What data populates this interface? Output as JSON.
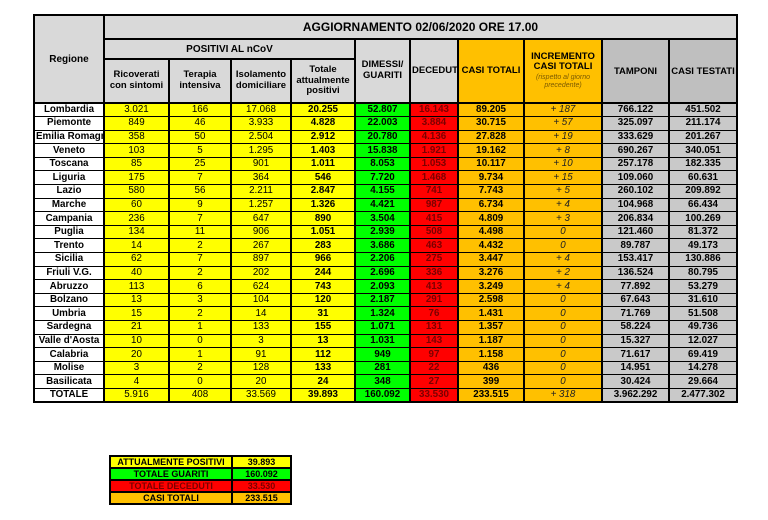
{
  "title": "AGGIORNAMENTO 02/06/2020 ORE 17.00",
  "colors": {
    "yellow": "#FFFF00",
    "green": "#00FF00",
    "red": "#FF0000",
    "orange": "#FFC000",
    "header_light_gray": "#D9D9D9",
    "header_dark_gray": "#BFBFBF",
    "data_gray": "#C9C9C9",
    "deceduti_text": "#7A0000"
  },
  "table": {
    "headers": {
      "regione": "Regione",
      "positivi_group": "POSITIVI AL nCoV",
      "ricoverati": "Ricoverati con sintomi",
      "terapia": "Terapia intensiva",
      "isolamento": "Isolamento domiciliare",
      "totale_positivi": "Totale attualmente positivi",
      "dimessi": "DIMESSI/ GUARITI",
      "deceduti": "DECEDUTI",
      "casi_totali": "CASI TOTALI",
      "incremento_line1": "INCREMENTO CASI TOTALI",
      "incremento_line2": "(rispetto al giorno precedente)",
      "tamponi": "TAMPONI",
      "casi_testati": "CASI TESTATI"
    },
    "cell_names": [
      "ricoverati-con-sintomi",
      "terapia-intensiva",
      "isolamento-domiciliare",
      "totale-attualmente-positivi",
      "dimessi-guariti",
      "deceduti",
      "casi-totali",
      "incremento-casi-totali",
      "tamponi",
      "casi-testati"
    ],
    "rows": [
      {
        "region": "Lombardia",
        "cells": [
          "3.021",
          "166",
          "17.068",
          "20.255",
          "52.807",
          "16.143",
          "89.205",
          "+ 187",
          "766.122",
          "451.502"
        ]
      },
      {
        "region": "Piemonte",
        "cells": [
          "849",
          "46",
          "3.933",
          "4.828",
          "22.003",
          "3.884",
          "30.715",
          "+ 57",
          "325.097",
          "211.174"
        ]
      },
      {
        "region": "Emilia Romagna",
        "cells": [
          "358",
          "50",
          "2.504",
          "2.912",
          "20.780",
          "4.136",
          "27.828",
          "+ 19",
          "333.629",
          "201.267"
        ]
      },
      {
        "region": "Veneto",
        "cells": [
          "103",
          "5",
          "1.295",
          "1.403",
          "15.838",
          "1.921",
          "19.162",
          "+ 8",
          "690.267",
          "340.051"
        ]
      },
      {
        "region": "Toscana",
        "cells": [
          "85",
          "25",
          "901",
          "1.011",
          "8.053",
          "1.053",
          "10.117",
          "+ 10",
          "257.178",
          "182.335"
        ]
      },
      {
        "region": "Liguria",
        "cells": [
          "175",
          "7",
          "364",
          "546",
          "7.720",
          "1.468",
          "9.734",
          "+ 15",
          "109.060",
          "60.631"
        ]
      },
      {
        "region": "Lazio",
        "cells": [
          "580",
          "56",
          "2.211",
          "2.847",
          "4.155",
          "741",
          "7.743",
          "+ 5",
          "260.102",
          "209.892"
        ]
      },
      {
        "region": "Marche",
        "cells": [
          "60",
          "9",
          "1.257",
          "1.326",
          "4.421",
          "987",
          "6.734",
          "+ 4",
          "104.968",
          "66.434"
        ]
      },
      {
        "region": "Campania",
        "cells": [
          "236",
          "7",
          "647",
          "890",
          "3.504",
          "415",
          "4.809",
          "+ 3",
          "206.834",
          "100.269"
        ]
      },
      {
        "region": "Puglia",
        "cells": [
          "134",
          "11",
          "906",
          "1.051",
          "2.939",
          "508",
          "4.498",
          "0",
          "121.460",
          "81.372"
        ]
      },
      {
        "region": "Trento",
        "cells": [
          "14",
          "2",
          "267",
          "283",
          "3.686",
          "463",
          "4.432",
          "0",
          "89.787",
          "49.173"
        ]
      },
      {
        "region": "Sicilia",
        "cells": [
          "62",
          "7",
          "897",
          "966",
          "2.206",
          "275",
          "3.447",
          "+ 4",
          "153.417",
          "130.886"
        ]
      },
      {
        "region": "Friuli V.G.",
        "cells": [
          "40",
          "2",
          "202",
          "244",
          "2.696",
          "336",
          "3.276",
          "+ 2",
          "136.524",
          "80.795"
        ]
      },
      {
        "region": "Abruzzo",
        "cells": [
          "113",
          "6",
          "624",
          "743",
          "2.093",
          "413",
          "3.249",
          "+ 4",
          "77.892",
          "53.279"
        ]
      },
      {
        "region": "Bolzano",
        "cells": [
          "13",
          "3",
          "104",
          "120",
          "2.187",
          "291",
          "2.598",
          "0",
          "67.643",
          "31.610"
        ]
      },
      {
        "region": "Umbria",
        "cells": [
          "15",
          "2",
          "14",
          "31",
          "1.324",
          "76",
          "1.431",
          "0",
          "71.769",
          "51.508"
        ]
      },
      {
        "region": "Sardegna",
        "cells": [
          "21",
          "1",
          "133",
          "155",
          "1.071",
          "131",
          "1.357",
          "0",
          "58.224",
          "49.736"
        ]
      },
      {
        "region": "Valle d'Aosta",
        "cells": [
          "10",
          "0",
          "3",
          "13",
          "1.031",
          "143",
          "1.187",
          "0",
          "15.327",
          "12.027"
        ]
      },
      {
        "region": "Calabria",
        "cells": [
          "20",
          "1",
          "91",
          "112",
          "949",
          "97",
          "1.158",
          "0",
          "71.617",
          "69.419"
        ]
      },
      {
        "region": "Molise",
        "cells": [
          "3",
          "2",
          "128",
          "133",
          "281",
          "22",
          "436",
          "0",
          "14.951",
          "14.278"
        ]
      },
      {
        "region": "Basilicata",
        "cells": [
          "4",
          "0",
          "20",
          "24",
          "348",
          "27",
          "399",
          "0",
          "30.424",
          "29.664"
        ]
      }
    ],
    "total": {
      "region": "TOTALE",
      "cells": [
        "5.916",
        "408",
        "33.569",
        "39.893",
        "160.092",
        "33.530",
        "233.515",
        "+ 318",
        "3.962.292",
        "2.477.302"
      ]
    }
  },
  "summary": {
    "rows": [
      {
        "label": "ATTUALMENTE POSITIVI",
        "value": "39.893",
        "bg": "#FFFF00",
        "fg": "#000000"
      },
      {
        "label": "TOTALE GUARITI",
        "value": "160.092",
        "bg": "#00FF00",
        "fg": "#000000"
      },
      {
        "label": "TOTALE DECEDUTI",
        "value": "33.530",
        "bg": "#FF0000",
        "fg": "#7A0000"
      },
      {
        "label": "CASI TOTALI",
        "value": "233.515",
        "bg": "#FFC000",
        "fg": "#000000"
      }
    ]
  }
}
